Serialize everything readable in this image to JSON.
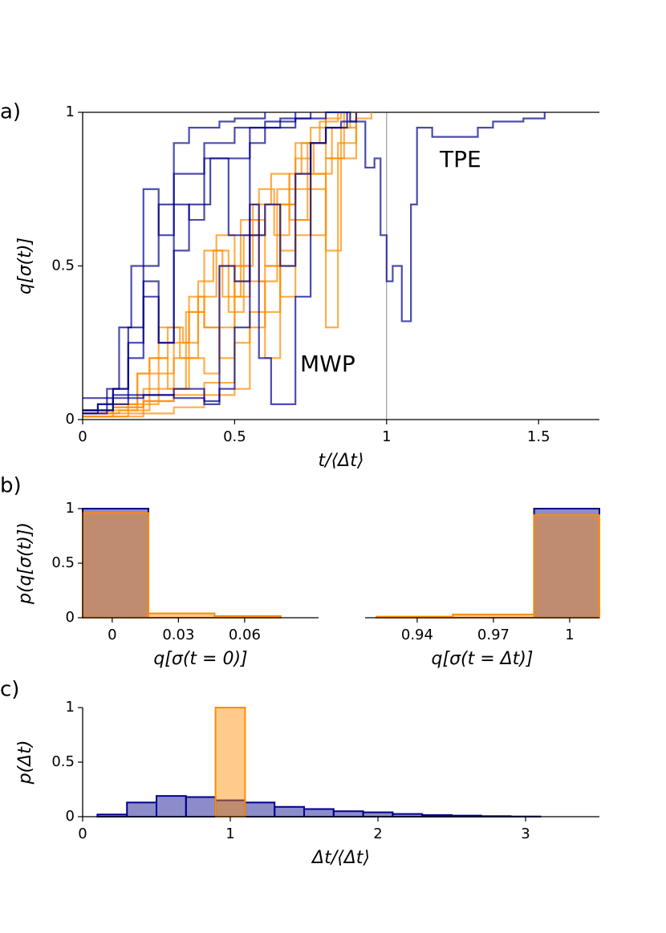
{
  "chart_data": [
    {
      "type": "line",
      "panel_label": "a)",
      "ylabel": "q[σ(t)]",
      "xlabel": "t/⟨Δt⟩",
      "xlim": [
        0,
        1.7
      ],
      "ylim": [
        0,
        1
      ],
      "xticks": [
        0,
        0.5,
        1,
        1.5
      ],
      "yticks": [
        0,
        0.5,
        1
      ],
      "vline": 1,
      "hline": 1,
      "series": [
        {
          "name": "TPE",
          "color": "#00008b",
          "lines": [
            {
              "x": [
                0,
                0.05,
                0.1,
                0.15,
                0.2,
                0.25,
                0.3,
                0.4,
                0.5,
                0.6,
                0.7,
                0.8,
                0.88,
                0.93,
                0.96,
                0.98,
                1.0,
                1.02,
                1.05,
                1.08,
                1.1,
                1.15,
                1.3,
                1.35,
                1.4,
                1.45,
                1.52
              ],
              "values": [
                0.03,
                0.05,
                0.1,
                0.3,
                0.5,
                0.7,
                0.8,
                0.9,
                0.95,
                0.97,
                0.98,
                1,
                0.97,
                0.82,
                0.85,
                0.6,
                0.45,
                0.5,
                0.32,
                0.7,
                0.95,
                0.92,
                0.95,
                0.97,
                0.97,
                0.98,
                1
              ]
            },
            {
              "x": [
                0,
                0.08,
                0.12,
                0.16,
                0.2,
                0.25,
                0.3,
                0.35,
                0.45,
                0.5,
                0.6
              ],
              "values": [
                0.02,
                0.1,
                0.3,
                0.5,
                0.75,
                0.6,
                0.9,
                0.95,
                0.97,
                0.98,
                1
              ]
            },
            {
              "x": [
                0,
                0.1,
                0.15,
                0.2,
                0.25,
                0.3,
                0.35,
                0.4,
                0.45,
                0.55,
                0.65,
                0.75
              ],
              "values": [
                0.03,
                0.05,
                0.2,
                0.4,
                0.25,
                0.7,
                0.65,
                0.85,
                0.85,
                0.95,
                0.98,
                1
              ]
            },
            {
              "x": [
                0,
                0.1,
                0.2,
                0.3,
                0.4,
                0.45,
                0.5,
                0.55,
                0.6,
                0.65,
                0.7,
                0.75,
                0.8,
                0.87
              ],
              "values": [
                0.07,
                0.07,
                0.08,
                0.07,
                0.06,
                0.1,
                0.3,
                0.6,
                0.7,
                0.5,
                0.8,
                0.9,
                0.95,
                1
              ]
            },
            {
              "x": [
                0,
                0.05,
                0.1,
                0.2,
                0.3,
                0.4,
                0.45,
                0.5,
                0.55,
                0.58,
                0.62,
                0.7,
                0.75,
                0.8,
                0.85,
                0.9
              ],
              "values": [
                0.03,
                0.05,
                0.08,
                0.08,
                0.1,
                0.05,
                0.5,
                0.45,
                0.7,
                0.2,
                0.05,
                0.4,
                0.9,
                0.95,
                0.97,
                1
              ]
            },
            {
              "x": [
                0,
                0.05,
                0.1,
                0.15,
                0.2,
                0.25,
                0.3,
                0.35,
                0.42,
                0.48,
                0.55,
                0.6,
                0.7
              ],
              "values": [
                0.02,
                0.03,
                0.1,
                0.25,
                0.45,
                0.25,
                0.55,
                0.7,
                0.85,
                0.6,
                0.9,
                0.95,
                1
              ]
            }
          ]
        },
        {
          "name": "MWP",
          "color": "#ff8c00",
          "lines": [
            {
              "x": [
                0,
                0.1,
                0.2,
                0.25,
                0.3,
                0.35,
                0.4,
                0.45,
                0.5,
                0.55,
                0.6,
                0.65,
                0.7,
                0.75,
                0.8
              ],
              "values": [
                0.01,
                0.02,
                0.05,
                0.1,
                0.2,
                0.35,
                0.3,
                0.5,
                0.4,
                0.6,
                0.7,
                0.55,
                0.85,
                0.95,
                1
              ]
            },
            {
              "x": [
                0,
                0.12,
                0.18,
                0.22,
                0.28,
                0.33,
                0.38,
                0.43,
                0.48,
                0.53,
                0.58,
                0.63,
                0.68,
                0.72,
                0.78,
                0.84
              ],
              "values": [
                0.02,
                0.03,
                0.15,
                0.2,
                0.3,
                0.25,
                0.45,
                0.55,
                0.35,
                0.6,
                0.75,
                0.6,
                0.8,
                0.9,
                0.97,
                1
              ]
            },
            {
              "x": [
                0,
                0.15,
                0.2,
                0.25,
                0.3,
                0.35,
                0.4,
                0.45,
                0.5,
                0.55,
                0.6,
                0.65,
                0.7,
                0.75,
                0.8,
                0.85,
                0.9
              ],
              "values": [
                0.03,
                0.05,
                0.1,
                0.15,
                0.25,
                0.4,
                0.3,
                0.2,
                0.45,
                0.65,
                0.5,
                0.7,
                0.8,
                0.6,
                0.85,
                0.95,
                1
              ]
            },
            {
              "x": [
                0,
                0.1,
                0.2,
                0.3,
                0.35,
                0.4,
                0.45,
                0.5,
                0.55,
                0.6,
                0.65,
                0.7,
                0.75,
                0.8,
                0.86
              ],
              "values": [
                0.02,
                0.04,
                0.06,
                0.1,
                0.2,
                0.15,
                0.3,
                0.5,
                0.45,
                0.35,
                0.7,
                0.75,
                0.9,
                0.85,
                1
              ]
            },
            {
              "x": [
                0,
                0.15,
                0.22,
                0.28,
                0.34,
                0.4,
                0.46,
                0.52,
                0.58,
                0.64,
                0.7,
                0.76,
                0.82,
                0.88
              ],
              "values": [
                0.01,
                0.03,
                0.2,
                0.1,
                0.35,
                0.55,
                0.4,
                0.65,
                0.45,
                0.75,
                0.9,
                0.8,
                0.95,
                1
              ]
            },
            {
              "x": [
                0,
                0.1,
                0.18,
                0.25,
                0.32,
                0.38,
                0.44,
                0.5,
                0.56,
                0.62,
                0.68,
                0.74,
                0.8,
                0.85
              ],
              "values": [
                0.02,
                0.05,
                0.15,
                0.3,
                0.2,
                0.4,
                0.6,
                0.5,
                0.7,
                0.8,
                0.65,
                0.9,
                0.98,
                1
              ]
            },
            {
              "x": [
                0,
                0.2,
                0.3,
                0.4,
                0.5,
                0.55,
                0.6,
                0.65,
                0.7,
                0.75,
                0.8,
                0.85,
                0.9,
                0.95
              ],
              "values": [
                0.01,
                0.02,
                0.04,
                0.08,
                0.1,
                0.3,
                0.5,
                0.4,
                0.6,
                0.75,
                0.55,
                0.85,
                0.98,
                1
              ]
            },
            {
              "x": [
                0,
                0.1,
                0.2,
                0.3,
                0.4,
                0.5,
                0.55,
                0.6,
                0.65,
                0.7,
                0.75,
                0.8,
                0.84,
                0.9
              ],
              "values": [
                0.03,
                0.04,
                0.06,
                0.08,
                0.12,
                0.25,
                0.35,
                0.2,
                0.5,
                0.65,
                0.8,
                0.3,
                0.9,
                1
              ]
            }
          ]
        }
      ]
    },
    {
      "type": "histogram",
      "panel_label": "b)",
      "ylabel": "p(q[σ(t)])",
      "xlabel": "q[σ(t = 0)]",
      "xlim": [
        -0.0134,
        0.0935
      ],
      "ylim": [
        0,
        1
      ],
      "xticks": [
        0,
        0.03,
        0.06
      ],
      "yticks": [
        0,
        0.5,
        1
      ],
      "series": [
        {
          "name": "TPE",
          "color": "#00008b",
          "bins": [
            -0.0134,
            0.0164,
            0.0464,
            0.0764
          ],
          "values": [
            1,
            0,
            0
          ]
        },
        {
          "name": "MWP",
          "color": "#ff8c00",
          "bins": [
            -0.0134,
            0.0164,
            0.0464,
            0.0764
          ],
          "values": [
            0.96,
            0.04,
            0.015
          ]
        }
      ]
    },
    {
      "type": "histogram",
      "xlabel": "q[σ(t = Δt)]",
      "xlim": [
        0.9195,
        1.0117
      ],
      "ylim": [
        0,
        1
      ],
      "xticks": [
        0.94,
        0.97,
        1
      ],
      "series": [
        {
          "name": "TPE",
          "color": "#00008b",
          "bins": [
            0.924,
            0.954,
            0.986,
            1.0117
          ],
          "values": [
            0,
            0,
            1
          ]
        },
        {
          "name": "MWP",
          "color": "#ff8c00",
          "bins": [
            0.924,
            0.954,
            0.986,
            1.0117
          ],
          "values": [
            0.01,
            0.03,
            0.94
          ]
        }
      ]
    },
    {
      "type": "histogram",
      "panel_label": "c)",
      "ylabel": "p(Δt)",
      "xlabel": "Δt/⟨Δt⟩",
      "xlim": [
        0,
        3.5
      ],
      "ylim": [
        0,
        1
      ],
      "xticks": [
        0,
        1,
        2,
        3
      ],
      "yticks": [
        0,
        0.5,
        1
      ],
      "series": [
        {
          "name": "TPE",
          "color": "#00008b",
          "bins": [
            0.1,
            0.3,
            0.5,
            0.7,
            0.9,
            1.1,
            1.3,
            1.5,
            1.7,
            1.9,
            2.1,
            2.3,
            2.5,
            2.7,
            2.9,
            3.1
          ],
          "values": [
            0.02,
            0.13,
            0.19,
            0.18,
            0.15,
            0.13,
            0.09,
            0.07,
            0.05,
            0.04,
            0.025,
            0.015,
            0.01,
            0.005,
            0.002
          ]
        },
        {
          "name": "MWP",
          "color": "#ff8c00",
          "bins": [
            0.9,
            1.1
          ],
          "values": [
            1
          ]
        }
      ]
    }
  ]
}
